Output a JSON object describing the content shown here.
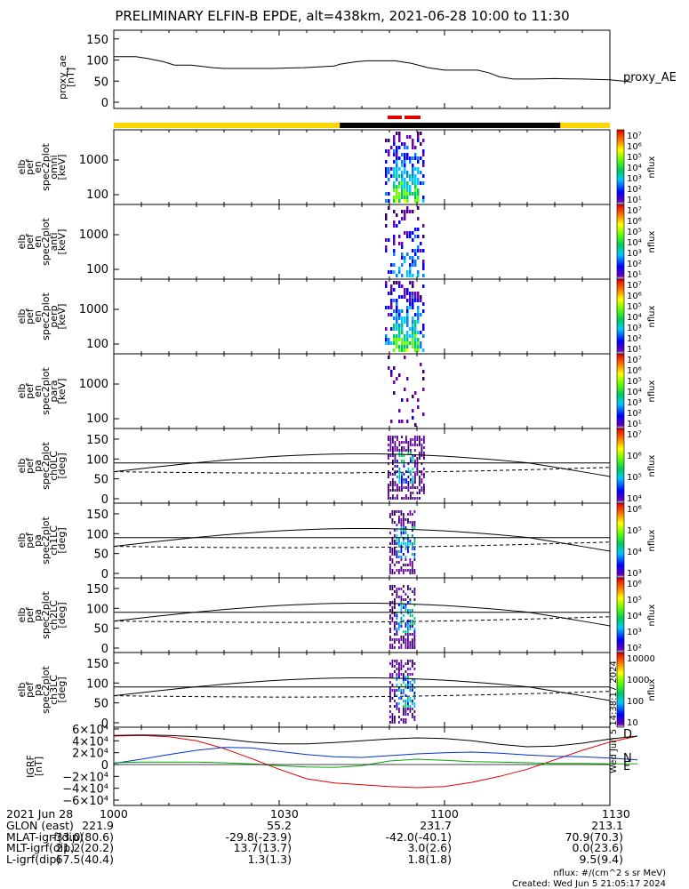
{
  "title": "PRELIMINARY ELFIN-B EPDE, alt=438km, 2021-06-28 10:00 to 11:30",
  "colors": {
    "status_yellow": "#FFD700",
    "status_black": "#000000",
    "status_red": "#E00000",
    "grf_D": "#DD0000",
    "grf_N": "#0033CC",
    "grf_E": "#00AA00",
    "grf_total": "#000000"
  },
  "chart_data": [
    {
      "type": "line",
      "panel": "proxy_ae",
      "ylabel": [
        "proxy_ae",
        "[nT]"
      ],
      "legend": "proxy_AE",
      "yticks": [
        "150",
        "100",
        "50",
        "0"
      ],
      "ylim": [
        0,
        160
      ],
      "x_minutes": [
        0,
        8,
        12,
        18,
        22,
        25,
        28,
        36,
        40,
        50,
        58,
        63,
        69,
        72,
        75,
        80,
        82,
        88,
        92,
        95,
        102,
        108,
        114,
        120,
        126,
        132,
        136,
        140,
        145,
        152,
        160,
        170,
        180,
        188
      ],
      "values": [
        108,
        108,
        104,
        96,
        88,
        88,
        88,
        82,
        80,
        80,
        80,
        81,
        82,
        83,
        84,
        86,
        90,
        96,
        98,
        98,
        98,
        92,
        82,
        76,
        76,
        76,
        70,
        60,
        55,
        55,
        56,
        55,
        53,
        48
      ]
    },
    {
      "type": "heatmap",
      "panel": "pef_en_spec2plot_omni",
      "ylabel": [
        "elb",
        "pef",
        "en",
        "spec2plot",
        "omni",
        "[keV]"
      ],
      "yticks": [
        "1000",
        "100"
      ],
      "colorbar_label": "nflux",
      "colorbar_ticks": [
        "10⁷",
        "10⁶",
        "10⁵",
        "10⁴",
        "10³",
        "10²",
        "10¹"
      ]
    },
    {
      "type": "heatmap",
      "panel": "pef_en_spec2plot_anti",
      "ylabel": [
        "elb",
        "pef",
        "en",
        "spec2plot",
        "anti",
        "[keV]"
      ],
      "yticks": [
        "1000",
        "100"
      ],
      "colorbar_label": "nflux",
      "colorbar_ticks": [
        "10⁷",
        "10⁶",
        "10⁵",
        "10⁴",
        "10³",
        "10²",
        "10¹"
      ]
    },
    {
      "type": "heatmap",
      "panel": "pef_en_spec2plot_perp",
      "ylabel": [
        "elb",
        "pef",
        "en",
        "spec2plot",
        "perp",
        "[keV]"
      ],
      "yticks": [
        "1000",
        "100"
      ],
      "colorbar_label": "nflux",
      "colorbar_ticks": [
        "10⁷",
        "10⁶",
        "10⁵",
        "10⁴",
        "10³",
        "10²",
        "10¹"
      ]
    },
    {
      "type": "heatmap",
      "panel": "pef_en_spec2plot_para",
      "ylabel": [
        "elb",
        "pef",
        "en",
        "spec2plot",
        "para",
        "[keV]"
      ],
      "yticks": [
        "1000",
        "100"
      ],
      "colorbar_label": "nflux",
      "colorbar_ticks": [
        "10⁷",
        "10⁶",
        "10⁵",
        "10⁴",
        "10³",
        "10²",
        "10¹"
      ]
    },
    {
      "type": "heatmap",
      "panel": "pef_pa_spec2plot_ch0LC",
      "ylabel": [
        "elb",
        "pef",
        "pa",
        "spec2plot",
        "ch0LC",
        "[deg]"
      ],
      "yticks": [
        "150",
        "100",
        "50",
        "0"
      ],
      "colorbar_label": "nflux",
      "colorbar_ticks": [
        "10⁷",
        "10⁶",
        "10⁵",
        "10⁴"
      ]
    },
    {
      "type": "heatmap",
      "panel": "pef_pa_spec2plot_ch1LC",
      "ylabel": [
        "elb",
        "pef",
        "pa",
        "spec2plot",
        "ch1LC",
        "[deg]"
      ],
      "yticks": [
        "150",
        "100",
        "50",
        "0"
      ],
      "colorbar_label": "nflux",
      "colorbar_ticks": [
        "10⁶",
        "10⁵",
        "10⁴",
        "10³"
      ]
    },
    {
      "type": "heatmap",
      "panel": "pef_pa_spec2plot_ch2LC",
      "ylabel": [
        "elb",
        "pef",
        "pa",
        "spec2plot",
        "ch2LC",
        "[deg]"
      ],
      "yticks": [
        "150",
        "100",
        "50",
        "0"
      ],
      "colorbar_label": "nflux",
      "colorbar_ticks": [
        "10⁶",
        "10⁵",
        "10⁴",
        "10³",
        "10²"
      ]
    },
    {
      "type": "heatmap",
      "panel": "pef_pa_spec2plot_ch3LC",
      "ylabel": [
        "elb",
        "pef",
        "pa",
        "spec2plot",
        "ch3LC",
        "[deg]"
      ],
      "yticks": [
        "150",
        "100",
        "50",
        "0"
      ],
      "colorbar_label": "nflux",
      "colorbar_ticks": [
        "10000",
        "1000",
        "100",
        "10"
      ]
    },
    {
      "type": "line",
      "panel": "IGRF",
      "ylabel": [
        "IGRF",
        "[nT]"
      ],
      "yticks": [
        "6×10⁴",
        "4×10⁴",
        "2×10⁴",
        "0",
        "−2×10⁴",
        "−4×10⁴",
        "−6×10⁴"
      ],
      "legend": [
        "D",
        "N",
        "E"
      ],
      "side_stamp": "Wed Jun  5 14:38:17 2024",
      "ylim": [
        -60000,
        60000
      ],
      "x_minutes": [
        0,
        10,
        20,
        30,
        40,
        50,
        60,
        70,
        80,
        90,
        100,
        110,
        120,
        130,
        140,
        150,
        160,
        170,
        180,
        190
      ],
      "series": [
        {
          "name": "D",
          "values": [
            48000,
            49000,
            47000,
            40000,
            27000,
            10000,
            -8000,
            -24000,
            -31000,
            -34000,
            -37000,
            -39000,
            -37000,
            -30000,
            -20000,
            -8000,
            8000,
            24000,
            38000,
            48000
          ]
        },
        {
          "name": "N",
          "values": [
            2000,
            9000,
            17000,
            24000,
            29000,
            28000,
            22000,
            17000,
            13000,
            12000,
            15000,
            18000,
            20000,
            21000,
            19000,
            16000,
            14000,
            13000,
            11000,
            8000
          ]
        },
        {
          "name": "E",
          "values": [
            3000,
            4000,
            4000,
            4000,
            3000,
            1000,
            -2000,
            -4000,
            -5000,
            -2000,
            6000,
            9000,
            7000,
            5000,
            4000,
            3000,
            2000,
            2000,
            1000,
            1000
          ]
        },
        {
          "name": "total",
          "values": [
            49000,
            50000,
            49000,
            47000,
            43000,
            38000,
            35000,
            35000,
            37000,
            40000,
            43000,
            45000,
            44000,
            40000,
            34000,
            30000,
            31000,
            36000,
            43000,
            48000
          ]
        }
      ]
    }
  ],
  "xaxis": {
    "ticks": [
      "1000",
      "1030",
      "1100",
      "1130"
    ],
    "date": "2021 Jun 28"
  },
  "ephemeris": [
    {
      "label": "GLON (east)",
      "values": [
        "221.9",
        "55.2",
        "231.7",
        "213.1"
      ]
    },
    {
      "label": "MLAT-igrf(dip)",
      "values": [
        "-33.0(80.6)",
        "-29.8(-23.9)",
        "-42.0(-40.1)",
        "70.9(70.3)"
      ]
    },
    {
      "label": "MLT-igrf(dip)",
      "values": [
        "21.2(20.2)",
        "13.7(13.7)",
        "3.0(2.6)",
        "0.0(23.6)"
      ]
    },
    {
      "label": "L-igrf(dip)",
      "values": [
        "67.5(40.4)",
        "1.3(1.3)",
        "1.8(1.8)",
        "9.5(9.4)"
      ]
    }
  ],
  "footer": {
    "units": "nflux: #/(cm^2 s sr MeV)",
    "created": "Created: Wed Jun  5 21:05:17 2024"
  }
}
